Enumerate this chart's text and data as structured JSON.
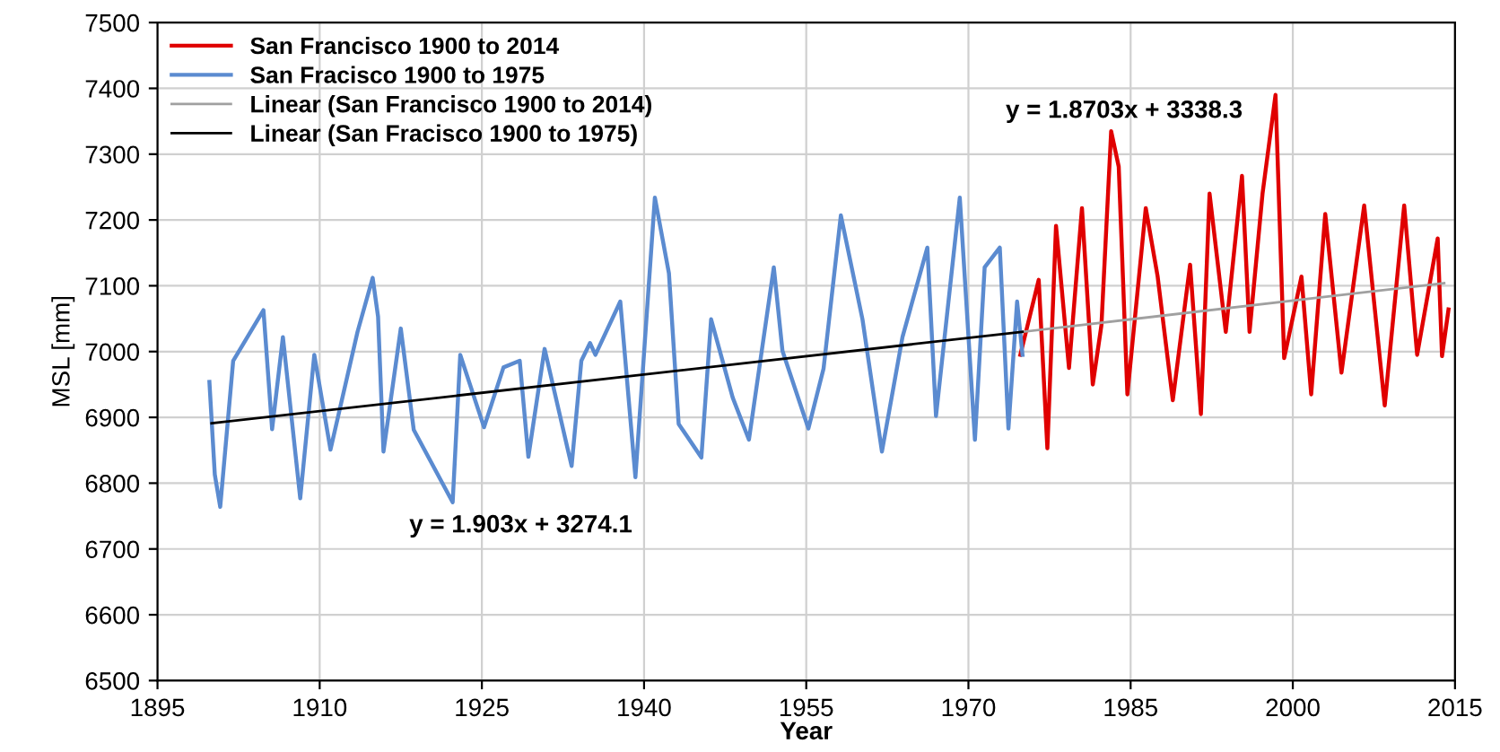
{
  "chart_data": {
    "type": "line",
    "xlabel": "Year",
    "ylabel": "MSL [mm]",
    "xlim": [
      1895,
      2015
    ],
    "xticks": [
      1895,
      1910,
      1925,
      1940,
      1955,
      1970,
      1985,
      2000,
      2015
    ],
    "ylim": [
      6500,
      7500
    ],
    "yticks": [
      6500,
      6600,
      6700,
      6800,
      6900,
      7000,
      7100,
      7200,
      7300,
      7400,
      7500
    ],
    "grid": true,
    "legend": "top left",
    "marker": "none",
    "line_style": "solid",
    "series": [
      {
        "name": "San Francisco 1900 to 2014",
        "color": "#e00000",
        "x": [
          1974.8,
          1976.5,
          1977.3,
          1978.1,
          1979.3,
          1980.5,
          1981.5,
          1982.3,
          1983.2,
          1983.9,
          1984.7,
          1986.4,
          1987.5,
          1988.9,
          1990.5,
          1991.5,
          1992.3,
          1993.8,
          1995.3,
          1996.0,
          1997.2,
          1998.4,
          1999.2,
          2000.8,
          2001.7,
          2003.0,
          2004.5,
          2006.6,
          2008.5,
          2010.3,
          2011.5,
          2013.4,
          2013.8,
          2014.4
        ],
        "values": [
          6995,
          7109,
          6853,
          7191,
          6975,
          7218,
          6950,
          7040,
          7335,
          7281,
          6935,
          7218,
          7114,
          6926,
          7132,
          6905,
          7240,
          7030,
          7267,
          7030,
          7240,
          7390,
          6990,
          7114,
          6935,
          7209,
          6968,
          7222,
          6918,
          7222,
          6995,
          7172,
          6993,
          7064
        ]
      },
      {
        "name": "San Fracisco 1900 to 1975",
        "color": "#5b8bd0",
        "x": [
          1899.8,
          1900.3,
          1900.8,
          1902.0,
          1904.8,
          1905.6,
          1906.6,
          1908.2,
          1909.5,
          1911.0,
          1913.5,
          1914.9,
          1915.4,
          1915.9,
          1917.5,
          1918.7,
          1922.3,
          1923.0,
          1925.2,
          1927.0,
          1928.5,
          1929.3,
          1930.8,
          1933.3,
          1934.2,
          1935.0,
          1935.5,
          1937.8,
          1939.2,
          1941.0,
          1942.3,
          1943.2,
          1945.3,
          1946.2,
          1948.2,
          1949.7,
          1952.0,
          1952.8,
          1955.2,
          1956.6,
          1958.2,
          1960.2,
          1962.0,
          1963.9,
          1966.2,
          1967.0,
          1969.2,
          1970.6,
          1971.5,
          1972.9,
          1973.7,
          1974.5,
          1975.0
        ],
        "values": [
          6954,
          6813,
          6764,
          6986,
          7063,
          6882,
          7022,
          6777,
          6995,
          6851,
          7030,
          7112,
          7053,
          6848,
          7035,
          6881,
          6771,
          6995,
          6885,
          6976,
          6986,
          6840,
          7004,
          6826,
          6986,
          7013,
          6995,
          7076,
          6809,
          7234,
          7119,
          6890,
          6839,
          7049,
          6930,
          6866,
          7128,
          7001,
          6883,
          6974,
          7207,
          7049,
          6848,
          7022,
          7158,
          6902,
          7234,
          6866,
          7128,
          7158,
          6883,
          7076,
          6995
        ]
      },
      {
        "name": "Linear (San Francisco 1900 to 2014)",
        "color": "#a0a0a0",
        "x": [
          1975,
          2014
        ],
        "values": [
          7030,
          7104
        ]
      },
      {
        "name": "Linear (San Fracisco 1900 to 1975)",
        "color": "#000000",
        "x": [
          1900,
          1975
        ],
        "values": [
          6891,
          7030
        ]
      }
    ],
    "annotations": [
      "y = 1.903x + 3274.1",
      "y = 1.8703x + 3338.3"
    ]
  }
}
